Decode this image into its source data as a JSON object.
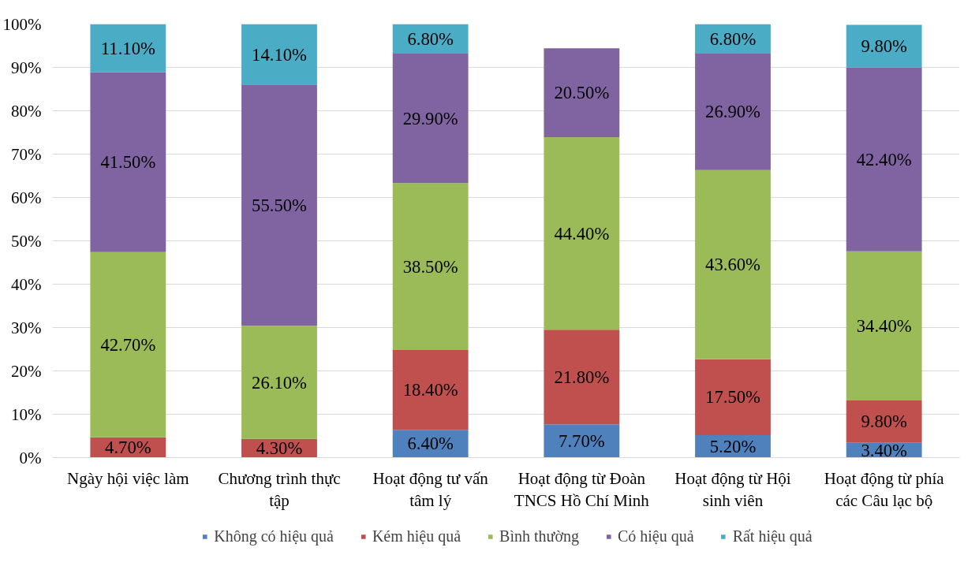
{
  "chart_data": {
    "type": "bar",
    "stacked": true,
    "categories": [
      "Ngày hội việc làm",
      "Chương trình thực tập",
      "Hoạt động tư vấn tâm lý",
      "Hoạt động từ Đoàn TNCS Hồ Chí Minh",
      "Hoạt động từ Hội sinh viên",
      "Hoạt động từ phía các Câu lạc bộ"
    ],
    "series": [
      {
        "name": "Không có hiệu quả",
        "color": "#4f81bd",
        "values": [
          0,
          0,
          6.4,
          7.7,
          5.2,
          3.4
        ],
        "value_labels": [
          null,
          null,
          "6.40%",
          "7.70%",
          "5.20%",
          "3.40%"
        ]
      },
      {
        "name": "Kém hiệu quả",
        "color": "#c0504d",
        "values": [
          4.7,
          4.3,
          18.4,
          21.8,
          17.5,
          9.8
        ],
        "value_labels": [
          "4.70%",
          "4.30%",
          "18.40%",
          "21.80%",
          "17.50%",
          "9.80%"
        ]
      },
      {
        "name": "Bình thường",
        "color": "#9bbb59",
        "values": [
          42.7,
          26.1,
          38.5,
          44.4,
          43.6,
          34.4
        ],
        "value_labels": [
          "42.70%",
          "26.10%",
          "38.50%",
          "44.40%",
          "43.60%",
          "34.40%"
        ]
      },
      {
        "name": "Có hiệu quả",
        "color": "#8064a2",
        "values": [
          41.5,
          55.5,
          29.9,
          20.5,
          26.9,
          42.4
        ],
        "value_labels": [
          "41.50%",
          "55.50%",
          "29.90%",
          "20.50%",
          "26.90%",
          "42.40%"
        ]
      },
      {
        "name": "Rất hiệu quả",
        "color": "#4bacc6",
        "values": [
          11.1,
          14.1,
          6.8,
          null,
          6.8,
          9.8
        ],
        "value_labels": [
          "11.10%",
          "14.10%",
          "6.80%",
          null,
          "6.80%",
          "9.80%"
        ]
      }
    ],
    "ylim": [
      0,
      100
    ],
    "yticks": [
      {
        "value": 0,
        "label": "0%"
      },
      {
        "value": 10,
        "label": "10%"
      },
      {
        "value": 20,
        "label": "20%"
      },
      {
        "value": 30,
        "label": "30%"
      },
      {
        "value": 40,
        "label": "40%"
      },
      {
        "value": 50,
        "label": "50%"
      },
      {
        "value": 60,
        "label": "60%"
      },
      {
        "value": 70,
        "label": "70%"
      },
      {
        "value": 80,
        "label": "80%"
      },
      {
        "value": 90,
        "label": "90%"
      },
      {
        "value": 100,
        "label": "100%"
      }
    ],
    "grid": "y",
    "legend": "bottom"
  }
}
